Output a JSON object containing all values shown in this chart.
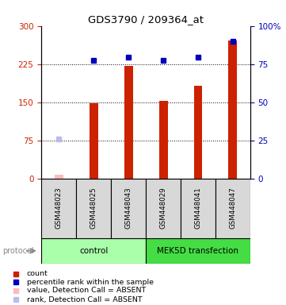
{
  "title": "GDS3790 / 209364_at",
  "samples": [
    "GSM448023",
    "GSM448025",
    "GSM448043",
    "GSM448029",
    "GSM448041",
    "GSM448047"
  ],
  "count_values": [
    8,
    148,
    222,
    152,
    182,
    272
  ],
  "rank_values": [
    78,
    232,
    238,
    232,
    238,
    270
  ],
  "rank_absent": [
    true,
    false,
    false,
    false,
    false,
    false
  ],
  "count_absent_flag": [
    true,
    false,
    false,
    false,
    false,
    false
  ],
  "groups": [
    {
      "label": "control",
      "indices": [
        0,
        1,
        2
      ],
      "color": "#aaffaa"
    },
    {
      "label": "MEK5D transfection",
      "indices": [
        3,
        4,
        5
      ],
      "color": "#44dd44"
    }
  ],
  "left_yticks": [
    0,
    75,
    150,
    225,
    300
  ],
  "left_ylim": [
    0,
    300
  ],
  "right_yticks": [
    0,
    25,
    50,
    75,
    100
  ],
  "right_ylim": [
    0,
    100
  ],
  "right_yticklabels": [
    "0",
    "25",
    "50",
    "75",
    "100%"
  ],
  "bar_color": "#cc2200",
  "bar_absent_color": "#ffbbbb",
  "dot_color": "#0000bb",
  "dot_absent_color": "#bbbbee",
  "bg_color": "#ffffff",
  "legend_items": [
    {
      "label": "count",
      "color": "#cc2200"
    },
    {
      "label": "percentile rank within the sample",
      "color": "#0000bb"
    },
    {
      "label": "value, Detection Call = ABSENT",
      "color": "#ffbbbb"
    },
    {
      "label": "rank, Detection Call = ABSENT",
      "color": "#bbbbee"
    }
  ],
  "protocol_label": "protocol",
  "figsize": [
    3.61,
    3.84
  ],
  "dpi": 100
}
